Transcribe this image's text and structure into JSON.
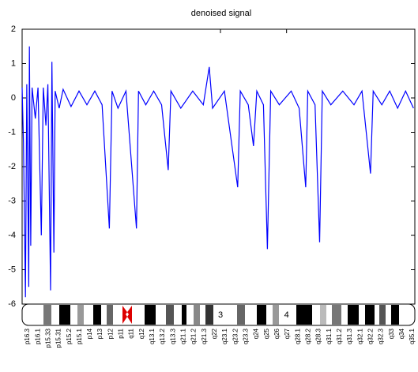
{
  "chart_data": {
    "type": "line",
    "title": "denoised signal",
    "x": [
      0,
      0.02,
      0.05,
      0.07,
      0.1,
      0.11,
      0.13,
      0.15,
      0.2,
      0.24,
      0.29,
      0.32,
      0.36,
      0.39,
      0.43,
      0.45,
      0.48,
      0.5,
      0.56,
      0.62,
      0.74,
      0.86,
      0.98,
      1.1,
      1.21,
      1.32,
      1.36,
      1.45,
      1.57,
      1.73,
      1.76,
      1.87,
      1.99,
      2.11,
      2.21,
      2.25,
      2.4,
      2.58,
      2.74,
      2.83,
      2.88,
      3.06,
      3.26,
      3.3,
      3.42,
      3.5,
      3.55,
      3.65,
      3.71,
      3.76,
      3.89,
      4.07,
      4.19,
      4.29,
      4.32,
      4.43,
      4.5,
      4.54,
      4.67,
      4.85,
      5.02,
      5.14,
      5.27,
      5.31,
      5.44,
      5.56,
      5.68,
      5.8,
      5.92
    ],
    "series": [
      {
        "name": "denoised signal",
        "color": "#0000ff",
        "values": [
          0.3,
          -1.3,
          -5.8,
          0.4,
          -5.5,
          1.5,
          -4.3,
          0.3,
          -0.6,
          0.3,
          -4.0,
          0.3,
          -0.8,
          0.4,
          -5.6,
          1.05,
          -4.5,
          0.2,
          -0.3,
          0.25,
          -0.25,
          0.2,
          -0.2,
          0.2,
          -0.2,
          -3.8,
          0.2,
          -0.3,
          0.2,
          -3.8,
          0.2,
          -0.2,
          0.2,
          -0.2,
          -2.1,
          0.2,
          -0.3,
          0.2,
          -0.2,
          0.9,
          -0.3,
          0.2,
          -2.6,
          0.2,
          -0.2,
          -1.4,
          0.2,
          -0.2,
          -4.4,
          0.2,
          -0.2,
          0.2,
          -0.3,
          -2.6,
          0.2,
          -0.2,
          -4.2,
          0.2,
          -0.2,
          0.2,
          -0.2,
          0.2,
          -2.2,
          0.2,
          -0.2,
          0.2,
          -0.3,
          0.2,
          -0.3
        ]
      }
    ],
    "xlim": [
      0,
      5.94
    ],
    "xticks": [
      3,
      4
    ],
    "ylim": [
      -6,
      2
    ],
    "yticks": [
      -6,
      -5,
      -4,
      -3,
      -2,
      -1,
      0,
      1,
      2
    ],
    "bands": [
      "p16.3",
      "p16.1",
      "p15.33",
      "p15.31",
      "p15.2",
      "p15.1",
      "p14",
      "p13",
      "p12",
      "p11",
      "q11",
      "q12",
      "q13.1",
      "q13.2",
      "q13.3",
      "q21.1",
      "q21.2",
      "q21.3",
      "q22",
      "q23.1",
      "q23.2",
      "q23.3",
      "q24",
      "q25",
      "q26",
      "q27",
      "q28.1",
      "q28.2",
      "q28.3",
      "q31.1",
      "q31.2",
      "q31.3",
      "q32.1",
      "q32.2",
      "q32.3",
      "q33",
      "q34",
      "q35.1"
    ]
  }
}
